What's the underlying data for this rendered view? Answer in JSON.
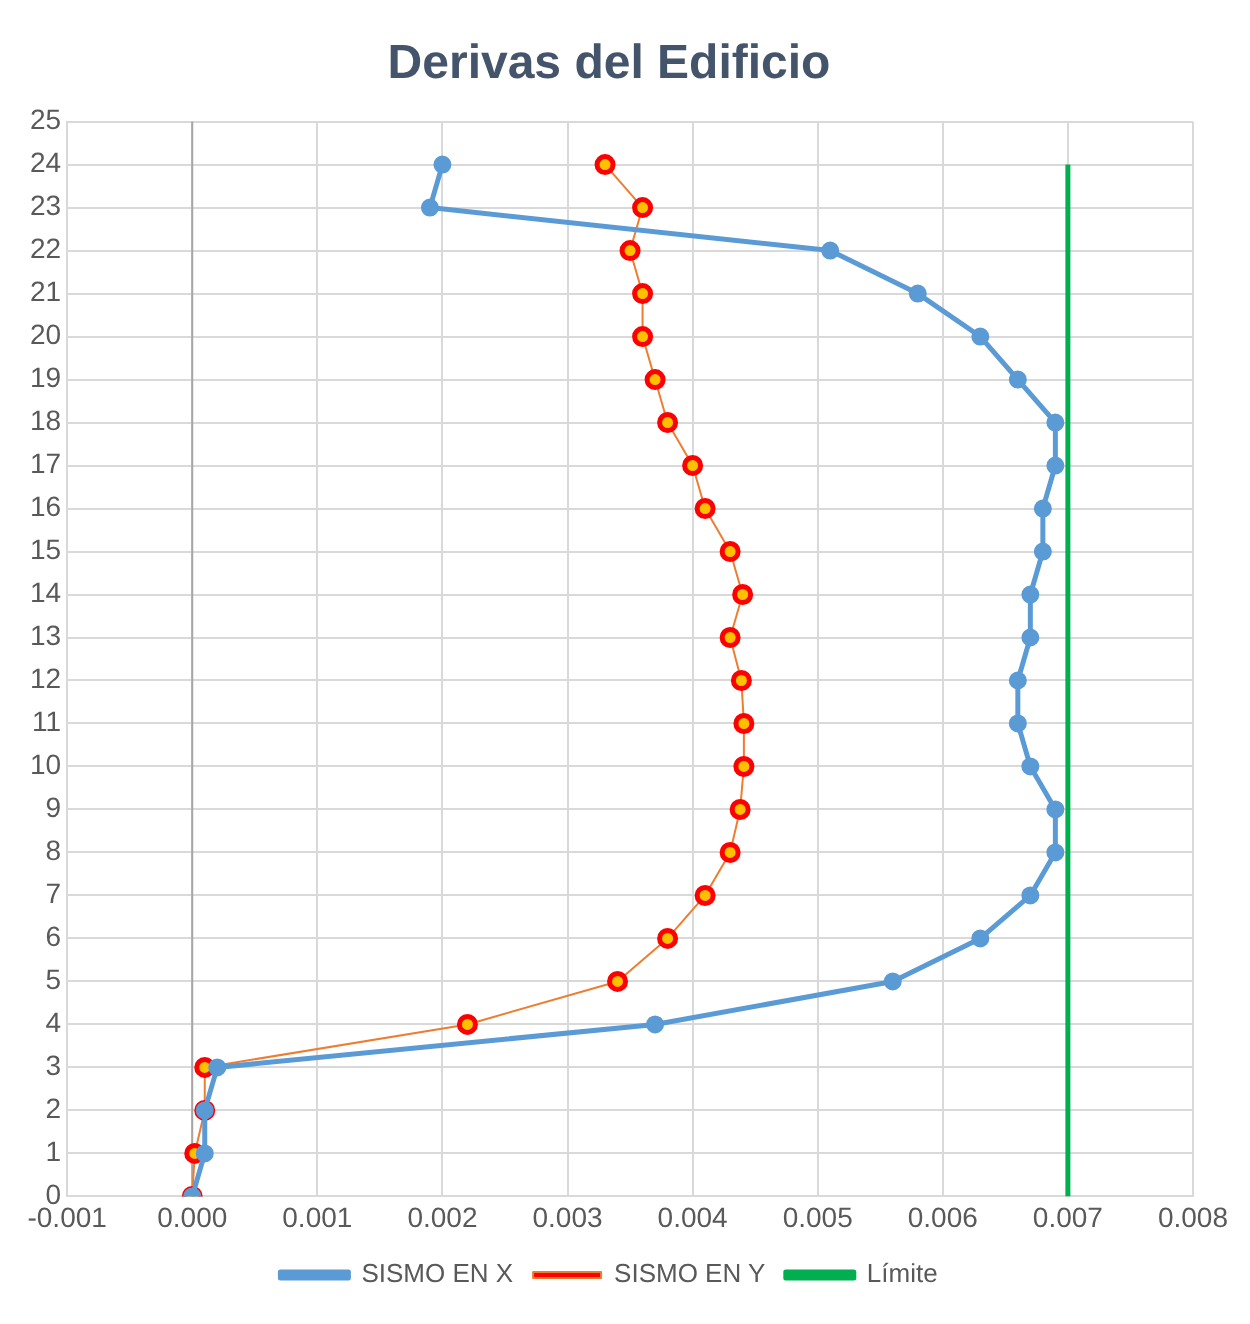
{
  "chart_data": {
    "type": "line",
    "title": "Derivas del Edificio",
    "xlim": [
      -0.001,
      0.008
    ],
    "xticks": [
      -0.001,
      {
        "value": 0,
        "label": "0.000"
      },
      0.001,
      0.002,
      0.003,
      0.004,
      0.005,
      0.006,
      0.007,
      0.008
    ],
    "ylim": [
      0,
      25
    ],
    "yticks": [
      0,
      1,
      2,
      3,
      4,
      5,
      6,
      7,
      8,
      9,
      10,
      11,
      12,
      13,
      14,
      15,
      16,
      17,
      18,
      19,
      20,
      21,
      22,
      23,
      24,
      25
    ],
    "grid": true,
    "legend": "bottom",
    "series": [
      {
        "name": "SISMO EN X",
        "color": "#5b9bd5",
        "marker": "circle",
        "x": [
          0,
          0.0001,
          0.0001,
          0.0002,
          0.0037,
          0.0056,
          0.0063,
          0.0067,
          0.0069,
          0.0069,
          0.0067,
          0.0066,
          0.0066,
          0.0067,
          0.0067,
          0.0068,
          0.0068,
          0.0069,
          0.0069,
          0.0066,
          0.0063,
          0.0058,
          0.0051,
          0.0019,
          0.002
        ],
        "values": [
          0,
          1,
          2,
          3,
          4,
          5,
          6,
          7,
          8,
          9,
          10,
          11,
          12,
          13,
          14,
          15,
          16,
          17,
          18,
          19,
          20,
          21,
          22,
          23,
          24
        ]
      },
      {
        "name": "SISMO EN Y",
        "color": "#ff0000",
        "marker": "circle",
        "x": [
          0,
          2e-05,
          0.0001,
          0.0001,
          0.0022,
          0.0034,
          0.0038,
          0.0041,
          0.0043,
          0.00438,
          0.00441,
          0.00441,
          0.00439,
          0.0043,
          0.0044,
          0.0043,
          0.0041,
          0.004,
          0.0038,
          0.0037,
          0.0036,
          0.0036,
          0.0035,
          0.0036,
          0.0033
        ],
        "values": [
          0,
          1,
          2,
          3,
          4,
          5,
          6,
          7,
          8,
          9,
          10,
          11,
          12,
          13,
          14,
          15,
          16,
          17,
          18,
          19,
          20,
          21,
          22,
          23,
          24
        ]
      },
      {
        "name": "Límite",
        "color": "#00b050",
        "marker": "none",
        "x": [
          0.007,
          0.007
        ],
        "values": [
          0,
          24
        ]
      }
    ]
  }
}
